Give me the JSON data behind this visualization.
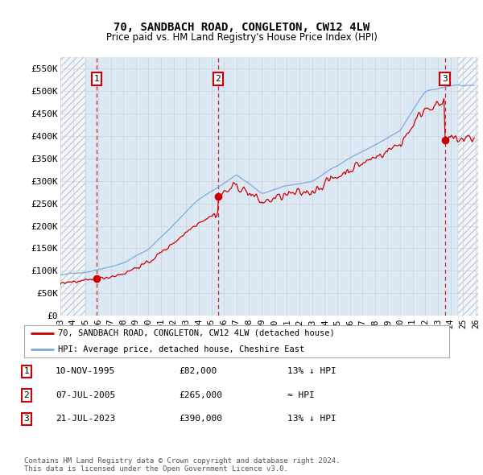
{
  "title": "70, SANDBACH ROAD, CONGLETON, CW12 4LW",
  "subtitle": "Price paid vs. HM Land Registry's House Price Index (HPI)",
  "ylabel_ticks": [
    "£0",
    "£50K",
    "£100K",
    "£150K",
    "£200K",
    "£250K",
    "£300K",
    "£350K",
    "£400K",
    "£450K",
    "£500K",
    "£550K"
  ],
  "ytick_values": [
    0,
    50000,
    100000,
    150000,
    200000,
    250000,
    300000,
    350000,
    400000,
    450000,
    500000,
    550000
  ],
  "ylim": [
    0,
    575000
  ],
  "xlim_start": 1993.0,
  "xlim_end": 2026.2,
  "xtick_years": [
    1993,
    1994,
    1995,
    1996,
    1997,
    1998,
    1999,
    2000,
    2001,
    2002,
    2003,
    2004,
    2005,
    2006,
    2007,
    2008,
    2009,
    2010,
    2011,
    2012,
    2013,
    2014,
    2015,
    2016,
    2017,
    2018,
    2019,
    2020,
    2021,
    2022,
    2023,
    2024,
    2025,
    2026
  ],
  "grid_color": "#cccccc",
  "hatch_color": "#dde8f0",
  "bg_color": "#dde8f5",
  "red_line_color": "#cc0000",
  "blue_line_color": "#7aabdc",
  "sale_points": [
    {
      "year": 1995.86,
      "price": 82000,
      "label": "1"
    },
    {
      "year": 2005.52,
      "price": 265000,
      "label": "2"
    },
    {
      "year": 2023.55,
      "price": 390000,
      "label": "3"
    }
  ],
  "sale_vline_color": "#cc0000",
  "legend_line1": "70, SANDBACH ROAD, CONGLETON, CW12 4LW (detached house)",
  "legend_line2": "HPI: Average price, detached house, Cheshire East",
  "table_rows": [
    {
      "num": "1",
      "date": "10-NOV-1995",
      "price": "£82,000",
      "note": "13% ↓ HPI"
    },
    {
      "num": "2",
      "date": "07-JUL-2005",
      "price": "£265,000",
      "note": "≈ HPI"
    },
    {
      "num": "3",
      "date": "21-JUL-2023",
      "price": "£390,000",
      "note": "13% ↓ HPI"
    }
  ],
  "footer": "Contains HM Land Registry data © Crown copyright and database right 2024.\nThis data is licensed under the Open Government Licence v3.0.",
  "hatch_left_end": 1995.0,
  "hatch_right_start": 2024.6
}
